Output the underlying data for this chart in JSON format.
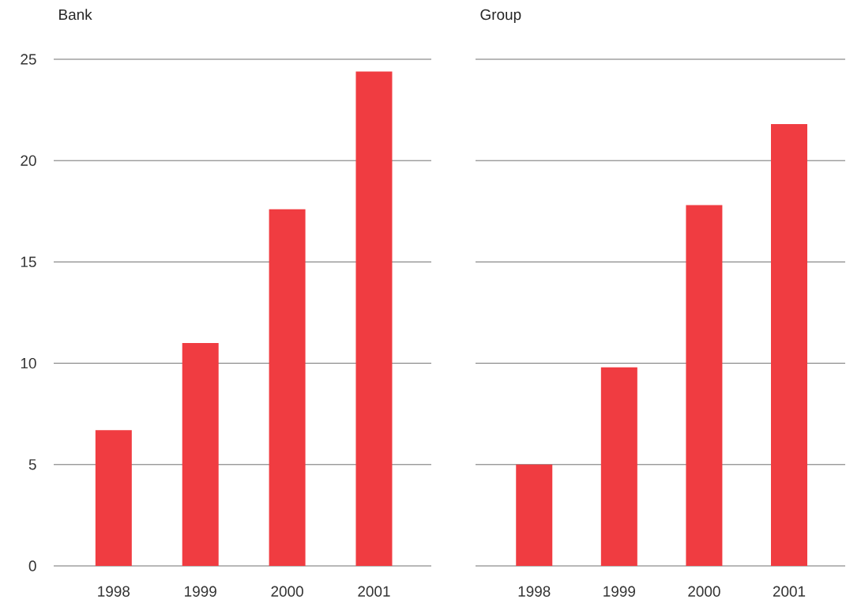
{
  "chart_data": [
    {
      "type": "bar",
      "title": "Bank",
      "categories": [
        "1998",
        "1999",
        "2000",
        "2001"
      ],
      "values": [
        6.7,
        11.0,
        17.6,
        24.4
      ],
      "color": "#f03c41",
      "ylim": [
        0,
        25
      ],
      "yticks": [
        0,
        5,
        10,
        15,
        20,
        25
      ],
      "grid": "y"
    },
    {
      "type": "bar",
      "title": "Group",
      "categories": [
        "1998",
        "1999",
        "2000",
        "2001"
      ],
      "values": [
        5.0,
        9.8,
        17.8,
        21.8
      ],
      "color": "#f03c41",
      "ylim": [
        0,
        25
      ],
      "yticks": [
        0,
        5,
        10,
        15,
        20,
        25
      ],
      "grid": "y",
      "tick_labels": "x"
    }
  ]
}
